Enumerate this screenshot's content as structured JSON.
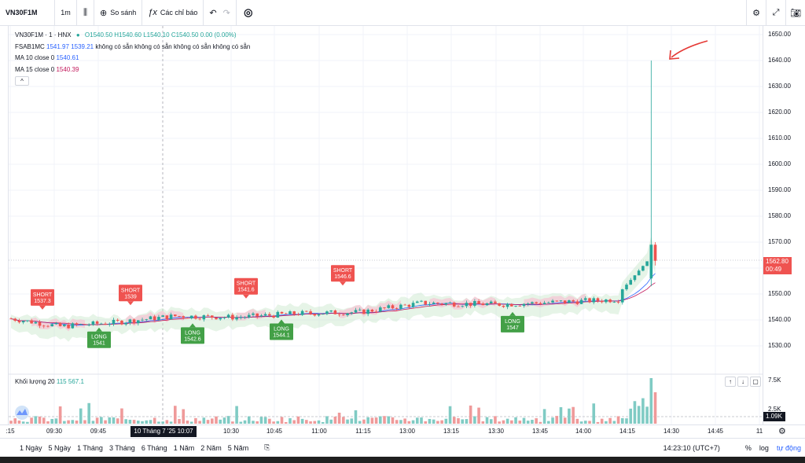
{
  "toolbar": {
    "symbol": "VN30F1M",
    "interval": "1m",
    "compare_label": "So sánh",
    "indicators_label": "Các chỉ báo"
  },
  "legend": {
    "symbol_line": "VN30F1M · 1 · HNX",
    "open": "O1540.50",
    "high": "H1540.60",
    "low": "L1540.10",
    "close": "C1540.50",
    "change": "0.00 (0.00%)",
    "fsab_label": "FSAB1MC",
    "fsab_v1": "1541.97",
    "fsab_v2": "1539.21",
    "fsab_na": "không có sẵn  không có sẵn  không có sẵn  không có sẵn",
    "ma10_label": "MA 10 close 0",
    "ma10_value": "1540.61",
    "ma15_label": "MA 15 close 0",
    "ma15_value": "1540.39",
    "collapse": "^"
  },
  "volume_legend": {
    "label": "Khối lượng 20",
    "v1": "115",
    "v2": "567.1"
  },
  "price_scale": {
    "ticks": [
      "1650.00",
      "1640.00",
      "1630.00",
      "1620.00",
      "1610.00",
      "1600.00",
      "1590.00",
      "1580.00",
      "1570.00",
      "1560.00",
      "1550.00",
      "1540.00",
      "1530.00"
    ],
    "current_price": "1562.80",
    "countdown": "00:49",
    "vol_ticks": [
      "7.5K",
      "2.5K"
    ],
    "vol_current": "1.09K"
  },
  "time_axis": {
    "ticks": [
      ":15",
      "09:30",
      "09:45",
      "10:15",
      "10:30",
      "10:45",
      "11:00",
      "11:15",
      "13:00",
      "13:15",
      "13:30",
      "13:45",
      "14:00",
      "14:15",
      "14:30",
      "14:45",
      "11"
    ],
    "cursor_label": "10 Tháng 7 '25   10:07"
  },
  "signals": [
    {
      "kind": "SHORT",
      "price": "1537.3"
    },
    {
      "kind": "LONG",
      "price": "1541"
    },
    {
      "kind": "SHORT",
      "price": "1539"
    },
    {
      "kind": "LONG",
      "price": "1542.6"
    },
    {
      "kind": "SHORT",
      "price": "1541.6"
    },
    {
      "kind": "LONG",
      "price": "1544.1"
    },
    {
      "kind": "SHORT",
      "price": "1546.6"
    },
    {
      "kind": "LONG",
      "price": "1547"
    }
  ],
  "bottom_bar": {
    "ranges": [
      "1 Ngày",
      "5 Ngày",
      "1 Tháng",
      "3 Tháng",
      "6 Tháng",
      "1 Năm",
      "2 Năm",
      "5 Năm"
    ],
    "clock": "14:23:10 (UTC+7)",
    "percent": "%",
    "log": "log",
    "auto": "tự động"
  },
  "colors": {
    "up": "#26a69a",
    "down": "#ef5350",
    "short": "#ef5350",
    "long": "#43a047",
    "ma10": "#2962ff",
    "ma15": "#c2185b",
    "annotation": "#e53935"
  },
  "chart_data": {
    "type": "candlestick",
    "symbol": "VN30F1M",
    "ylim": [
      1525,
      1655
    ],
    "last_close": 1562.8,
    "spike_high": 1640,
    "signal_levels": [
      1537.3,
      1541,
      1539,
      1542.6,
      1541.6,
      1544.1,
      1546.6,
      1547
    ]
  }
}
